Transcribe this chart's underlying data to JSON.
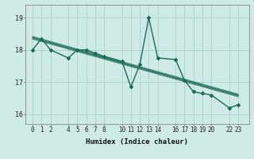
{
  "x_data": [
    0,
    1,
    2,
    4,
    5,
    6,
    7,
    8,
    10,
    11,
    12,
    13,
    14,
    16,
    17,
    18,
    19,
    20,
    22,
    23
  ],
  "y_data": [
    18.0,
    18.35,
    18.0,
    17.75,
    18.0,
    18.0,
    17.9,
    17.8,
    17.65,
    16.85,
    17.55,
    19.0,
    17.75,
    17.7,
    17.05,
    16.7,
    16.65,
    16.6,
    16.2,
    16.3
  ],
  "x_ticks": [
    0,
    1,
    2,
    4,
    5,
    6,
    7,
    8,
    10,
    11,
    12,
    13,
    14,
    16,
    17,
    18,
    19,
    20,
    22,
    23
  ],
  "x_tick_labels": [
    "0",
    "1",
    "2",
    "4",
    "5",
    "6",
    "7",
    "8",
    "10",
    "11",
    "12",
    "13",
    "14",
    "16",
    "17",
    "18",
    "19",
    "20",
    "22",
    "23"
  ],
  "y_ticks": [
    16,
    17,
    18,
    19
  ],
  "xlabel": "Humidex (Indice chaleur)",
  "ylim": [
    15.7,
    19.4
  ],
  "xlim": [
    -0.8,
    24.2
  ],
  "line_color": "#1a6b5a",
  "bg_color": "#ceeae4",
  "grid_color": "#b0d4cc",
  "marker": "D",
  "marker_size": 2,
  "line_width": 1.0,
  "trend_color": "#1a6b5a"
}
